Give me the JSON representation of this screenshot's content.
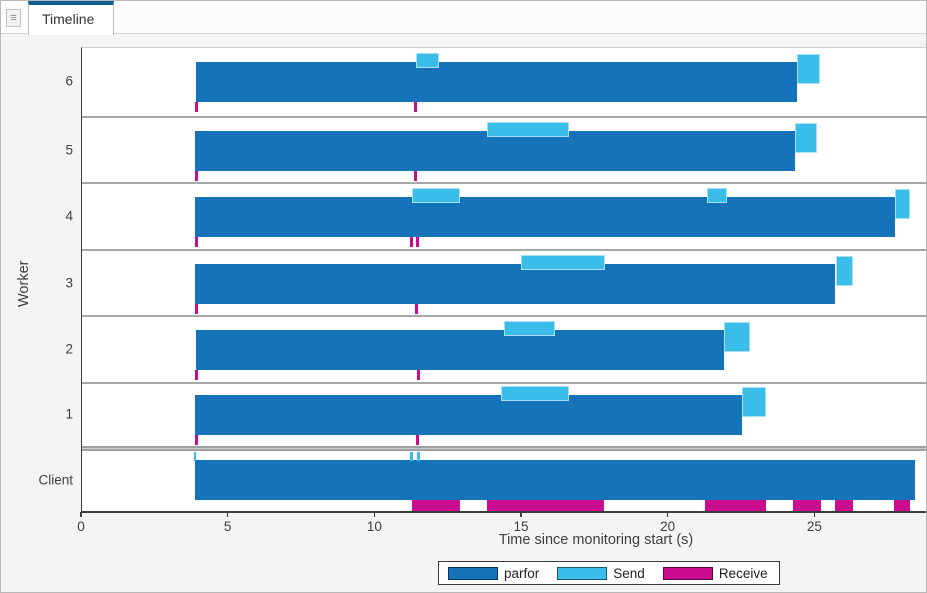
{
  "tab": {
    "title": "Timeline"
  },
  "icons": {
    "panel_menu": "≡"
  },
  "colors": {
    "parfor": "#1573b9",
    "send": "#3bbde9",
    "send_outline": "#a9e0f6",
    "receive": "#ca0d8e",
    "tab_accent": "#0e5d8f"
  },
  "chart_data": {
    "type": "timeline",
    "title": "",
    "xlabel": "Time since monitoring start (s)",
    "ylabel": "Worker",
    "x_ticks": [
      0,
      5,
      10,
      15,
      20,
      25
    ],
    "xlim": [
      0,
      28.9
    ],
    "grid": false,
    "legend_position": "bottom-center",
    "legend": [
      {
        "label": "parfor",
        "key": "parfor"
      },
      {
        "label": "Send",
        "key": "send"
      },
      {
        "label": "Receive",
        "key": "receive"
      }
    ],
    "rows": [
      {
        "label": "6",
        "parfor": [
          3.89,
          24.38
        ],
        "sends": [
          [
            11.39,
            12.17
          ]
        ],
        "end_send": [
          24.38,
          25.17
        ],
        "receive_ticks": [
          3.89,
          11.36
        ]
      },
      {
        "label": "5",
        "parfor": [
          3.85,
          24.3
        ],
        "sends": [
          [
            13.81,
            16.6
          ]
        ],
        "end_send": [
          24.3,
          25.07
        ],
        "receive_ticks": [
          3.89,
          11.36
        ]
      },
      {
        "label": "4",
        "parfor": [
          3.85,
          27.72
        ],
        "sends": [
          [
            11.25,
            12.9
          ],
          [
            21.31,
            21.99
          ]
        ],
        "end_send": [
          27.72,
          28.24
        ],
        "receive_ticks": [
          3.89,
          11.23,
          11.42
        ]
      },
      {
        "label": "3",
        "parfor": [
          3.85,
          25.66
        ],
        "sends": [
          [
            14.95,
            17.82
          ]
        ],
        "end_send": [
          25.69,
          26.28
        ],
        "receive_ticks": [
          3.89,
          11.39
        ]
      },
      {
        "label": "2",
        "parfor": [
          3.89,
          21.88
        ],
        "sends": [
          [
            14.38,
            16.14
          ]
        ],
        "end_send": [
          21.88,
          22.77
        ],
        "receive_ticks": [
          3.89,
          11.44
        ]
      },
      {
        "label": "1",
        "parfor": [
          3.85,
          22.5
        ],
        "sends": [
          [
            14.29,
            16.6
          ]
        ],
        "end_send": [
          22.5,
          23.32
        ],
        "receive_ticks": [
          3.89,
          11.42
        ]
      },
      {
        "label": "Client",
        "client": true,
        "parfor": [
          3.85,
          28.4
        ],
        "send_ticks": [
          3.85,
          11.22,
          11.46
        ],
        "receives": [
          [
            11.25,
            12.9
          ],
          [
            13.79,
            17.79
          ],
          [
            21.25,
            23.32
          ],
          [
            24.24,
            25.2
          ],
          [
            25.66,
            26.28
          ],
          [
            27.67,
            28.21
          ]
        ]
      }
    ]
  }
}
